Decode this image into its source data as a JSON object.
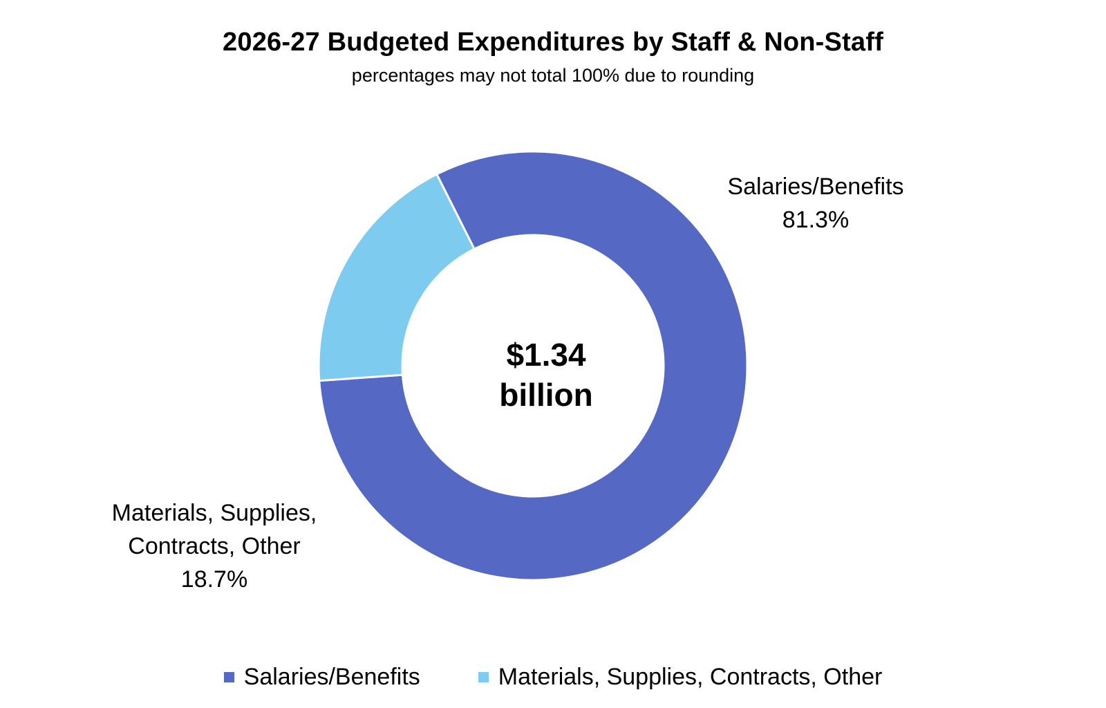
{
  "chart_data": {
    "type": "pie",
    "title": "2026-27 Budgeted Expenditures by Staff & Non-Staff",
    "subtitle": "percentages may not total 100% due to rounding",
    "center_label": {
      "amount": "$1.34",
      "unit": "billion"
    },
    "slices": [
      {
        "name": "Salaries/Benefits",
        "value": 81.3,
        "value_label": "81.3%",
        "color": "#5468c4"
      },
      {
        "name": "Materials, Supplies, Contracts, Other",
        "value": 18.7,
        "value_label": "18.7%",
        "color": "#7ecbf0"
      }
    ],
    "slice_labels": {
      "salaries": [
        "Salaries/Benefits",
        "81.3%"
      ],
      "materials": [
        "Materials, Supplies,",
        "Contracts, Other",
        "18.7%"
      ]
    },
    "legend": {
      "placement": "bottom",
      "entries": [
        "Salaries/Benefits",
        "Materials, Supplies, Contracts, Other"
      ]
    }
  }
}
